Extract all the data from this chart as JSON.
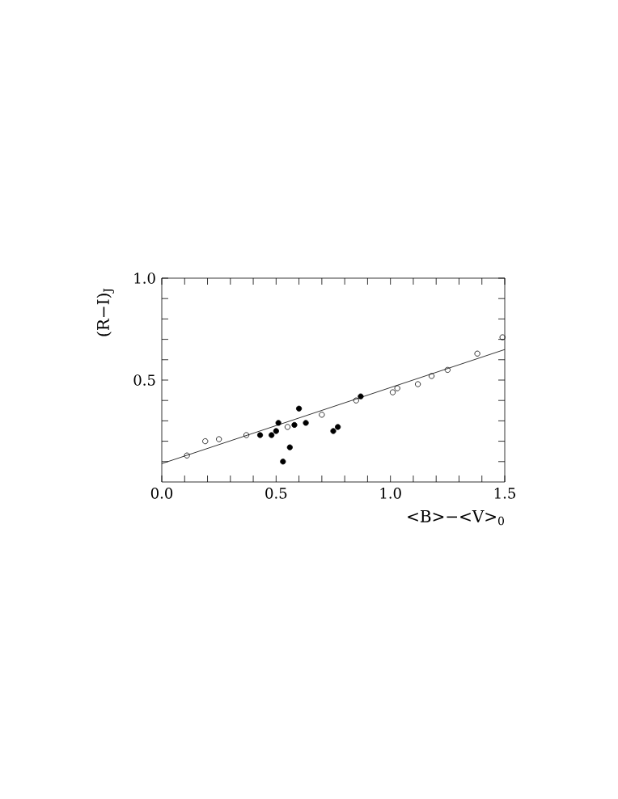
{
  "chart_data": {
    "type": "scatter",
    "xlabel": "<B>−<V>$_{0}$",
    "ylabel": "(R−I)$_{J}$",
    "xlim": [
      0,
      1.5
    ],
    "ylim": [
      0,
      1
    ],
    "xticks": [
      {
        "value": 0,
        "label": "0.0"
      },
      {
        "value": 0.1,
        "label": null
      },
      {
        "value": 0.2,
        "label": null
      },
      {
        "value": 0.3,
        "label": null
      },
      {
        "value": 0.4,
        "label": null
      },
      {
        "value": 0.5,
        "label": "0.5"
      },
      {
        "value": 0.6,
        "label": null
      },
      {
        "value": 0.7,
        "label": null
      },
      {
        "value": 0.8,
        "label": null
      },
      {
        "value": 0.9,
        "label": null
      },
      {
        "value": 1.0,
        "label": "1.0"
      },
      {
        "value": 1.1,
        "label": null
      },
      {
        "value": 1.2,
        "label": null
      },
      {
        "value": 1.3,
        "label": null
      },
      {
        "value": 1.4,
        "label": null
      },
      {
        "value": 1.5,
        "label": "1.5"
      }
    ],
    "yticks": [
      {
        "value": 0.1,
        "label": null
      },
      {
        "value": 0.2,
        "label": null
      },
      {
        "value": 0.3,
        "label": null
      },
      {
        "value": 0.4,
        "label": null
      },
      {
        "value": 0.5,
        "label": "0.5"
      },
      {
        "value": 0.6,
        "label": null
      },
      {
        "value": 0.7,
        "label": null
      },
      {
        "value": 0.8,
        "label": null
      },
      {
        "value": 0.9,
        "label": null
      },
      {
        "value": 1.0,
        "label": "1.0"
      }
    ],
    "series": [
      {
        "color": "#000000",
        "marker": "open circle",
        "x": [
          0.11,
          0.19,
          0.25,
          0.37,
          0.55,
          0.7,
          0.85,
          1.01,
          1.03,
          1.12,
          1.18,
          1.25,
          1.38,
          1.49
        ],
        "values": [
          0.13,
          0.2,
          0.21,
          0.23,
          0.27,
          0.33,
          0.4,
          0.44,
          0.46,
          0.48,
          0.52,
          0.55,
          0.63,
          0.71
        ]
      },
      {
        "color": "#000000",
        "marker": "circle",
        "x": [
          0.43,
          0.48,
          0.5,
          0.51,
          0.53,
          0.56,
          0.58,
          0.6,
          0.63,
          0.75,
          0.77,
          0.87
        ],
        "values": [
          0.23,
          0.23,
          0.25,
          0.29,
          0.1,
          0.17,
          0.28,
          0.36,
          0.29,
          0.25,
          0.27,
          0.42
        ]
      },
      {
        "type": "line",
        "color": "#000000",
        "marker": "none",
        "x": [
          0,
          1.5
        ],
        "values": [
          0.09,
          0.65
        ]
      }
    ]
  }
}
